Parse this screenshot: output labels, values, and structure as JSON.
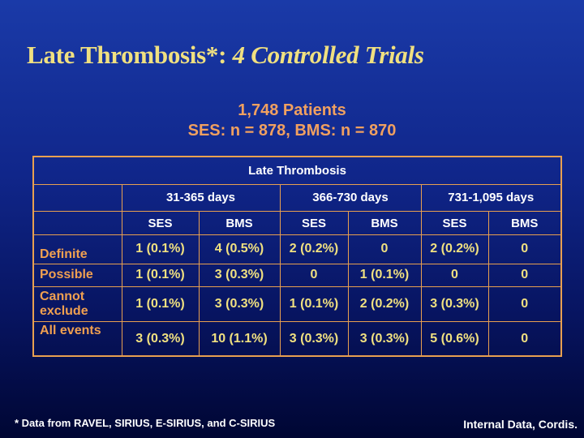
{
  "title": {
    "main": "Late Thrombosis*:",
    "italic": "4 Controlled Trials"
  },
  "subtitle": {
    "line1": "1,748 Patients",
    "line2": "SES: n = 878, BMS: n = 870"
  },
  "table": {
    "caption": "Late Thrombosis",
    "periods": [
      "31-365 days",
      "366-730 days",
      "731-1,095 days"
    ],
    "columns": [
      "SES",
      "BMS",
      "SES",
      "BMS",
      "SES",
      "BMS"
    ],
    "rows": [
      {
        "label": "Definite",
        "values": [
          "1 (0.1%)",
          "4 (0.5%)",
          "2 (0.2%)",
          "0",
          "2 (0.2%)",
          "0"
        ]
      },
      {
        "label": "Possible",
        "values": [
          "1 (0.1%)",
          "3 (0.3%)",
          "0",
          "1 (0.1%)",
          "0",
          "0"
        ]
      },
      {
        "label": "Cannot exclude",
        "values": [
          "1 (0.1%)",
          "3 (0.3%)",
          "1 (0.1%)",
          "2 (0.2%)",
          "3 (0.3%)",
          "0"
        ]
      },
      {
        "label": "All events",
        "values": [
          "3 (0.3%)",
          "10 (1.1%)",
          "3 (0.3%)",
          "3 (0.3%)",
          "5 (0.6%)",
          "0"
        ]
      }
    ]
  },
  "footnote": "* Data from RAVEL, SIRIUS, E-SIRIUS, and C-SIRIUS",
  "source": "Internal Data, Cordis."
}
